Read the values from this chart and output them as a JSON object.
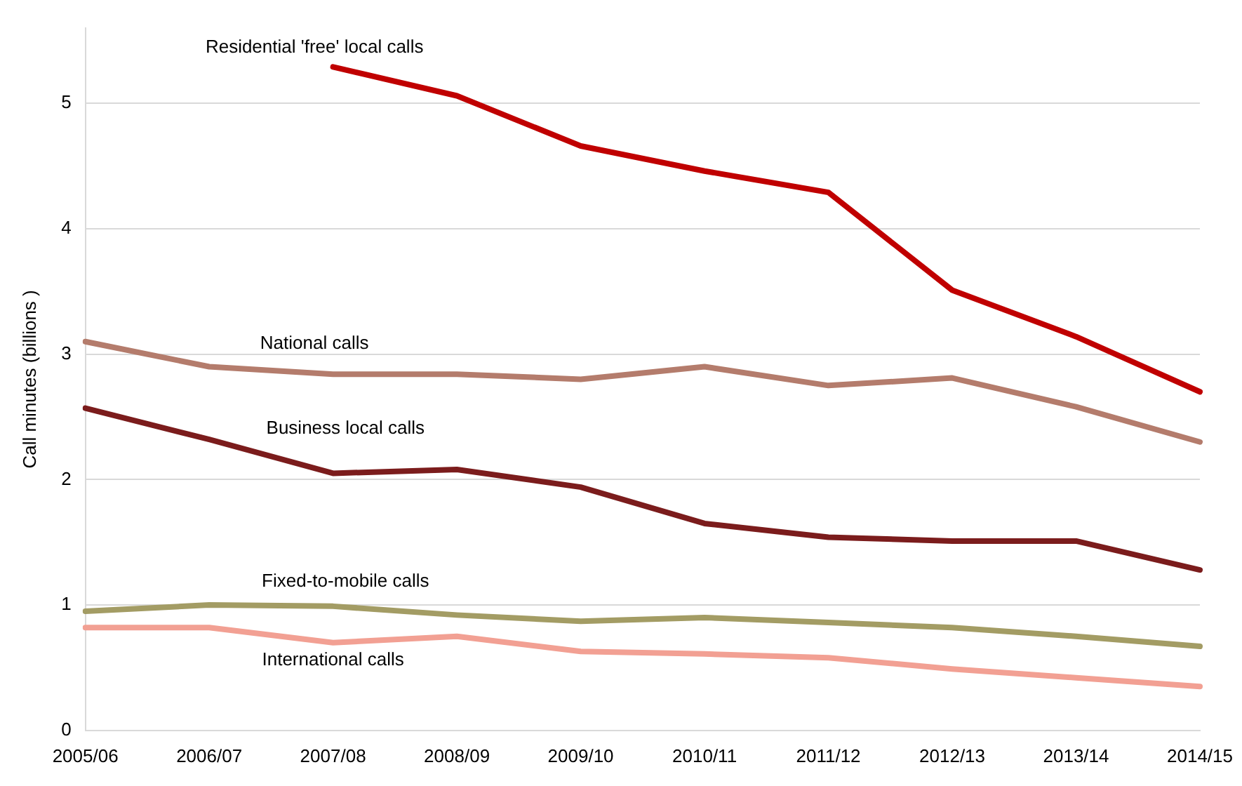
{
  "chart_data": {
    "type": "line",
    "ylabel": "Call minutes (billions )",
    "categories": [
      "2005/06",
      "2006/07",
      "2007/08",
      "2008/09",
      "2009/10",
      "2010/11",
      "2011/12",
      "2012/13",
      "2013/14",
      "2014/15"
    ],
    "series": [
      {
        "name": "Residential 'free' local calls",
        "color": "#c00000",
        "values": [
          null,
          null,
          5.29,
          5.06,
          4.66,
          4.46,
          4.29,
          3.51,
          3.14,
          2.7
        ]
      },
      {
        "name": "National calls",
        "color": "#b47c6c",
        "values": [
          3.1,
          2.9,
          2.84,
          2.84,
          2.8,
          2.9,
          2.75,
          2.81,
          2.58,
          2.3
        ]
      },
      {
        "name": "Business local calls",
        "color": "#7b1c1c",
        "values": [
          2.57,
          2.32,
          2.05,
          2.08,
          1.94,
          1.65,
          1.54,
          1.51,
          1.51,
          1.28
        ]
      },
      {
        "name": "Fixed-to-mobile calls",
        "color": "#a39c64",
        "values": [
          0.95,
          1.0,
          0.99,
          0.92,
          0.87,
          0.9,
          0.86,
          0.82,
          0.75,
          0.67
        ]
      },
      {
        "name": "International calls",
        "color": "#f2a093",
        "values": [
          0.82,
          0.82,
          0.7,
          0.75,
          0.63,
          0.61,
          0.58,
          0.49,
          0.42,
          0.35
        ]
      }
    ],
    "ylim": [
      0,
      5.6
    ],
    "yticks": [
      0,
      1,
      2,
      3,
      4,
      5
    ],
    "grid": "y",
    "legend": false,
    "marker": "none",
    "line_style": "solid"
  }
}
